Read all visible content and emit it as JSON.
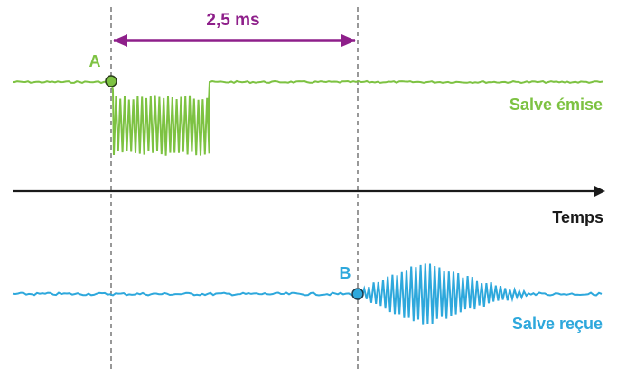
{
  "measure_label": "2,5 ms",
  "point_a_label": "A",
  "point_b_label": "B",
  "emitted_label": "Salve émise",
  "received_label": "Salve reçue",
  "time_axis_label": "Temps",
  "colors": {
    "emitted": "#7dc242",
    "received": "#2ea8dc",
    "measure": "#8e1f8a",
    "axis": "#1a1a1a",
    "guide": "#555555",
    "point_fill": "#7dc242",
    "point_b_fill": "#2ea8dc",
    "point_stroke": "#2a3d1a"
  }
}
